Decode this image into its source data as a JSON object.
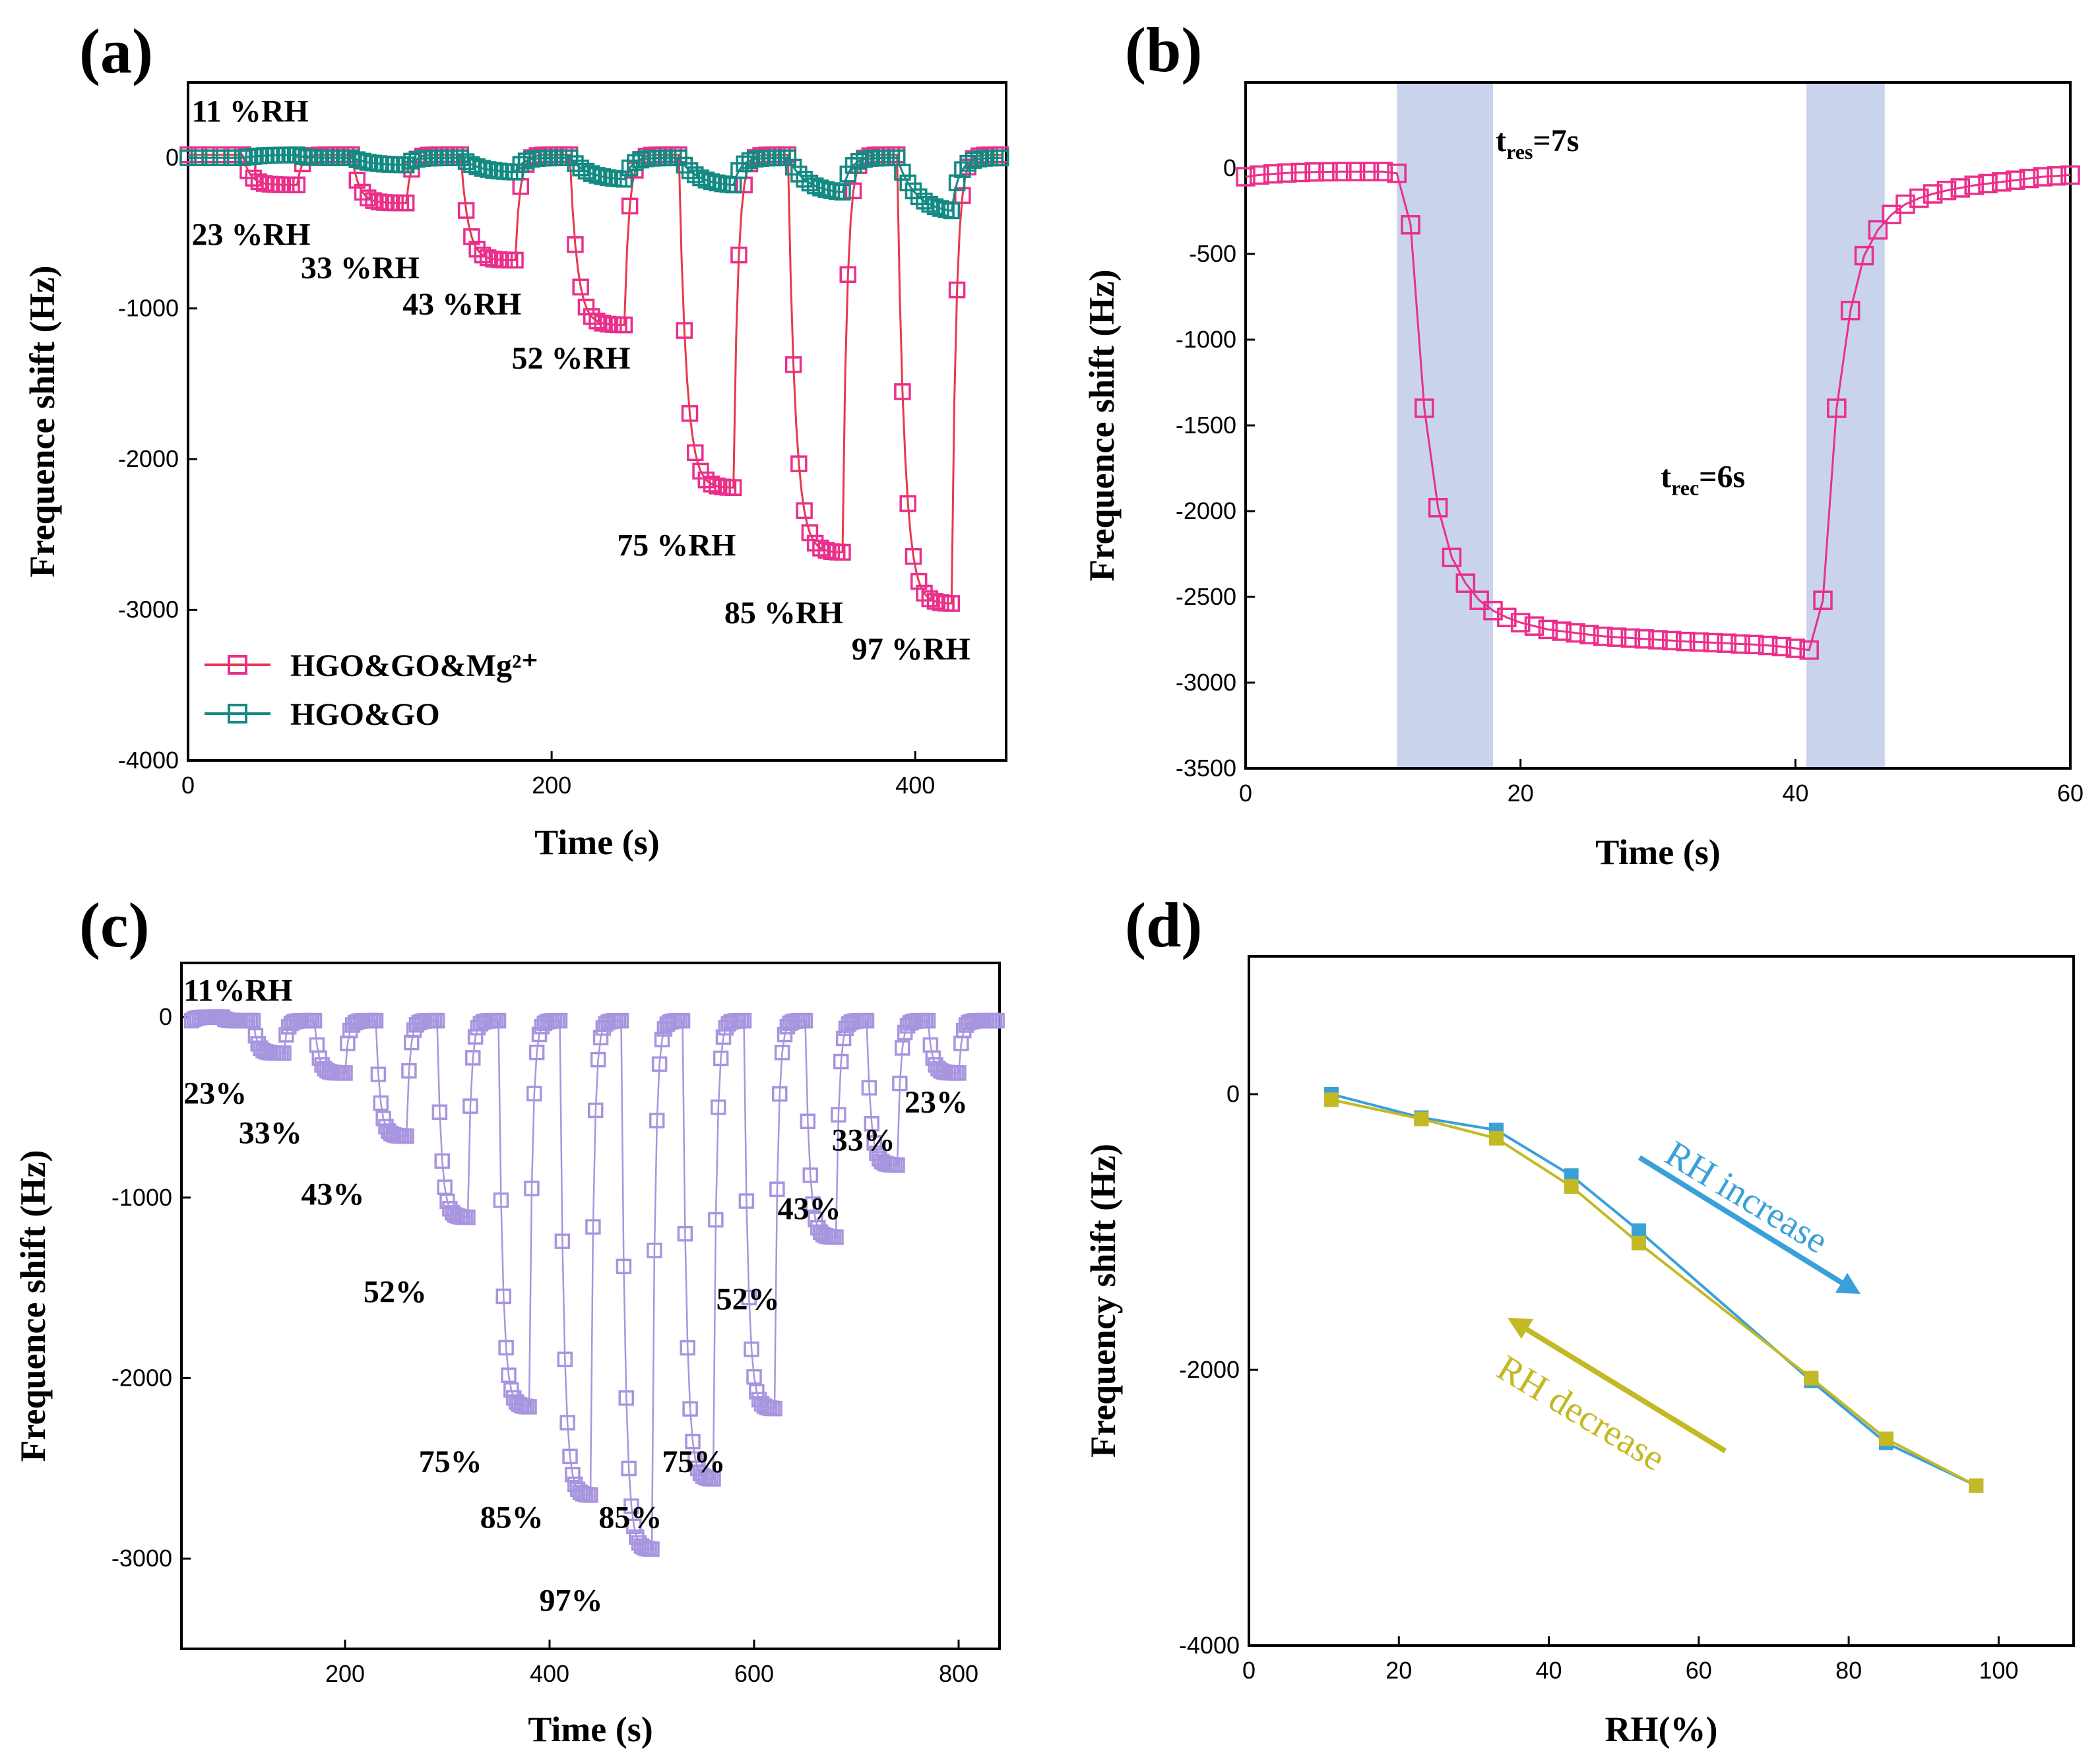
{
  "colors": {
    "pink": "#ea2f8c",
    "pink_line": "#e8394b",
    "teal": "#138a82",
    "lavender": "#a895df",
    "band": "#c9d4ec",
    "blue": "#3aa0d8",
    "olive": "#c3b924"
  },
  "chart_data": [
    {
      "id": "a",
      "panel_label": "(a)",
      "type": "line",
      "xlabel": "Time (s)",
      "ylabel": "Frequence shift (Hz)",
      "xlim": [
        0,
        450
      ],
      "ylim": [
        -4000,
        500
      ],
      "xticks": [
        0,
        200,
        400
      ],
      "yticks": [
        0,
        -1000,
        -2000,
        -3000,
        -4000
      ],
      "series": [
        {
          "name": "HGO&GO&Mg²⁺",
          "color": "pink",
          "steps": [
            {
              "t0": 30,
              "t1": 60,
              "depth": -180
            },
            {
              "t0": 90,
              "t1": 120,
              "depth": -300
            },
            {
              "t0": 150,
              "t1": 180,
              "depth": -680
            },
            {
              "t0": 210,
              "t1": 240,
              "depth": -1110
            },
            {
              "t0": 270,
              "t1": 300,
              "depth": -2190
            },
            {
              "t0": 330,
              "t1": 360,
              "depth": -2620
            },
            {
              "t0": 390,
              "t1": 420,
              "depth": -2960
            }
          ]
        },
        {
          "name": "HGO&GO",
          "color": "teal",
          "steps": [
            {
              "t0": 30,
              "t1": 60,
              "depth": 20
            },
            {
              "t0": 90,
              "t1": 120,
              "depth": -50
            },
            {
              "t0": 150,
              "t1": 180,
              "depth": -100
            },
            {
              "t0": 210,
              "t1": 240,
              "depth": -150
            },
            {
              "t0": 270,
              "t1": 300,
              "depth": -190
            },
            {
              "t0": 330,
              "t1": 360,
              "depth": -240
            },
            {
              "t0": 390,
              "t1": 420,
              "depth": -370
            }
          ]
        }
      ],
      "annotations": [
        {
          "text": "11 %RH",
          "x": 2,
          "y": 240
        },
        {
          "text": "23 %RH",
          "x": 2,
          "y": -580
        },
        {
          "text": "33 %RH",
          "x": 62,
          "y": -800
        },
        {
          "text": "43 %RH",
          "x": 118,
          "y": -1040
        },
        {
          "text": "52 %RH",
          "x": 178,
          "y": -1400
        },
        {
          "text": "75 %RH",
          "x": 236,
          "y": -2640
        },
        {
          "text": "85 %RH",
          "x": 295,
          "y": -3090
        },
        {
          "text": "97 %RH",
          "x": 365,
          "y": -3330
        }
      ]
    },
    {
      "id": "b",
      "panel_label": "(b)",
      "type": "line",
      "xlabel": "Time (s)",
      "ylabel": "Frequence shift (Hz)",
      "xlim": [
        0,
        60
      ],
      "ylim": [
        -3500,
        500
      ],
      "xticks": [
        0,
        20,
        40,
        60
      ],
      "yticks": [
        0,
        -500,
        -1000,
        -1500,
        -2000,
        -2500,
        -3000,
        -3500
      ],
      "bands": [
        [
          11,
          18
        ],
        [
          40.8,
          46.5
        ]
      ],
      "annotations": [
        {
          "main": "t",
          "sub": "res",
          "rest": "=7s",
          "x": 18.2,
          "y": 100
        },
        {
          "main": "t",
          "sub": "rec",
          "rest": "=6s",
          "x": 30.2,
          "y": -1860
        }
      ],
      "series": [
        {
          "name": "response",
          "color": "pink",
          "x": [
            0,
            1,
            2,
            3,
            4,
            5,
            6,
            7,
            8,
            9,
            10,
            11,
            12,
            13,
            14,
            15,
            16,
            17,
            18,
            19,
            20,
            21,
            22,
            23,
            24,
            25,
            26,
            27,
            28,
            29,
            30,
            31,
            32,
            33,
            34,
            35,
            36,
            37,
            38,
            39,
            40,
            41,
            42,
            43,
            44,
            45,
            46,
            47,
            48,
            49,
            50,
            51,
            52,
            53,
            54,
            55,
            56,
            57,
            58,
            59,
            60
          ],
          "y": [
            -50,
            -40,
            -33,
            -28,
            -25,
            -22,
            -21,
            -20,
            -20,
            -20,
            -20,
            -30,
            -330,
            -1400,
            -1980,
            -2270,
            -2420,
            -2520,
            -2580,
            -2620,
            -2650,
            -2670,
            -2690,
            -2700,
            -2710,
            -2720,
            -2730,
            -2735,
            -2740,
            -2745,
            -2750,
            -2755,
            -2760,
            -2763,
            -2767,
            -2770,
            -2775,
            -2778,
            -2783,
            -2790,
            -2800,
            -2810,
            -2520,
            -1400,
            -830,
            -510,
            -360,
            -270,
            -210,
            -175,
            -150,
            -130,
            -115,
            -100,
            -90,
            -80,
            -70,
            -60,
            -50,
            -45,
            -40
          ]
        }
      ]
    },
    {
      "id": "c",
      "panel_label": "(c)",
      "type": "line",
      "xlabel": "Time (s)",
      "ylabel": "Frequence shift (Hz)",
      "xlim": [
        40,
        840
      ],
      "ylim": [
        -3500,
        300
      ],
      "xticks": [
        200,
        400,
        600,
        800
      ],
      "yticks": [
        0,
        -1000,
        -2000,
        -3000
      ],
      "series": [
        {
          "name": "cycle",
          "color": "lavender",
          "step_starts": [
            50,
            110,
            170,
            230,
            290,
            350,
            410,
            470,
            530,
            590,
            650,
            710,
            770
          ],
          "step_depths": [
            0,
            -200,
            -310,
            -660,
            -1110,
            -2160,
            -2650,
            -2950,
            -2560,
            -2170,
            -1220,
            -820,
            -310
          ],
          "end": 840
        }
      ],
      "annotations": [
        {
          "text": "11%RH",
          "x": 42,
          "y": 90
        },
        {
          "text": "23%",
          "x": 42,
          "y": -480
        },
        {
          "text": "33%",
          "x": 96,
          "y": -700
        },
        {
          "text": "43%",
          "x": 157,
          "y": -1040
        },
        {
          "text": "52%",
          "x": 218,
          "y": -1580
        },
        {
          "text": "75%",
          "x": 272,
          "y": -2520
        },
        {
          "text": "85%",
          "x": 332,
          "y": -2830
        },
        {
          "text": "97%",
          "x": 390,
          "y": -3290
        },
        {
          "text": "85%",
          "x": 448,
          "y": -2830
        },
        {
          "text": "75%",
          "x": 510,
          "y": -2520
        },
        {
          "text": "52%",
          "x": 563,
          "y": -1620
        },
        {
          "text": "43%",
          "x": 623,
          "y": -1120
        },
        {
          "text": "33%",
          "x": 676,
          "y": -740
        },
        {
          "text": "23%",
          "x": 747,
          "y": -530
        }
      ]
    },
    {
      "id": "d",
      "panel_label": "(d)",
      "type": "line",
      "xlabel": "RH(%)",
      "ylabel": "Frequency shift (Hz)",
      "xlim": [
        0,
        110
      ],
      "ylim": [
        -4000,
        1000
      ],
      "xticks": [
        0,
        20,
        40,
        60,
        80,
        100
      ],
      "yticks": [
        0,
        -2000,
        -4000
      ],
      "series": [
        {
          "name": "RH increase",
          "color": "blue",
          "x": [
            11,
            23,
            33,
            43,
            52,
            75,
            85,
            97
          ],
          "y": [
            0,
            -170,
            -260,
            -590,
            -990,
            -2080,
            -2530,
            -2840
          ]
        },
        {
          "name": "RH decrease",
          "color": "olive",
          "x": [
            11,
            23,
            33,
            43,
            52,
            75,
            85,
            97
          ],
          "y": [
            -40,
            -180,
            -320,
            -670,
            -1080,
            -2060,
            -2500,
            -2840
          ]
        }
      ],
      "arrow_labels": {
        "increase": "RH increase",
        "decrease": "RH decrease"
      }
    }
  ]
}
